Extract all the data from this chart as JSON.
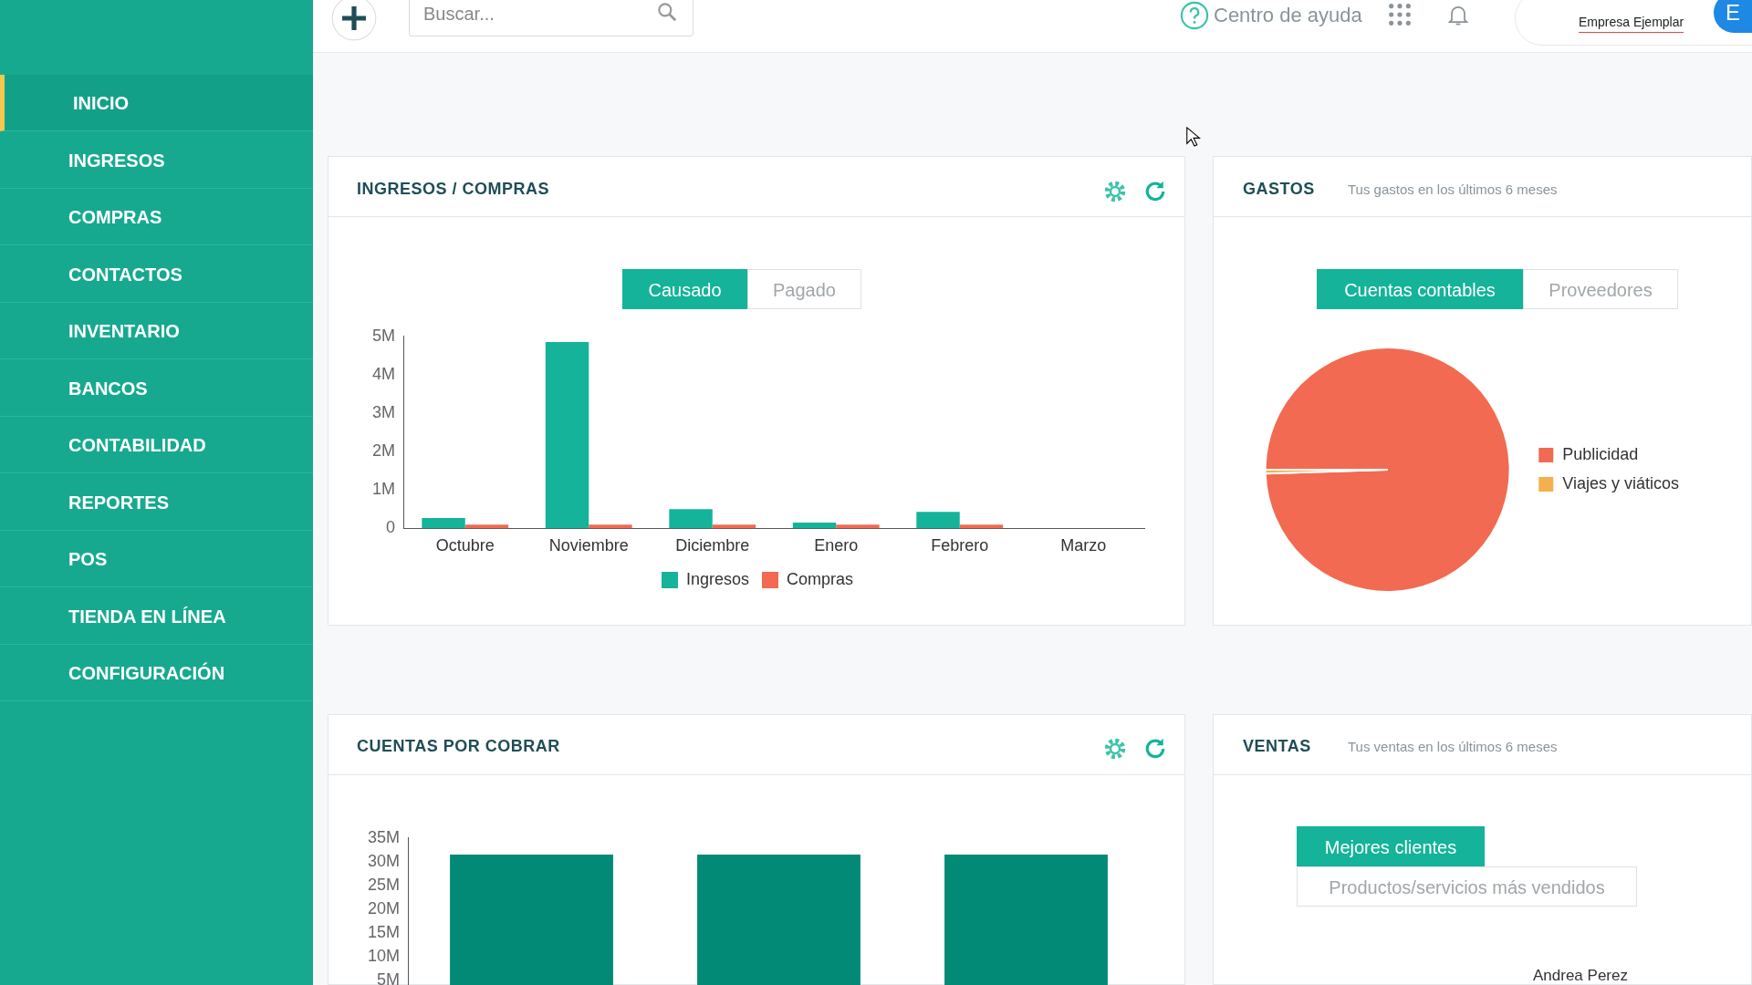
{
  "chart_data": [
    {
      "type": "other",
      "annotations": [
        "INICIO",
        "INGRESOS",
        "COMPRAS",
        "CONTACTOS",
        "INVENTARIO",
        "BANCOS",
        "CONTABILIDAD",
        "REPORTES",
        "POS",
        "TIENDA EN LÍNEA",
        "CONFIGURACIÓN",
        "Buscar...",
        "Centro de ayuda",
        "Empresa Ejemplar",
        "E"
      ]
    },
    {
      "type": "bar",
      "title": "INGRESOS / COMPRAS",
      "annotations": [
        "Causado",
        "Pagado"
      ],
      "categories": [
        "Octubre",
        "Noviembre",
        "Diciembre",
        "Enero",
        "Febrero",
        "Marzo"
      ],
      "series": [
        {
          "name": "Ingresos",
          "color": "#14b39a",
          "values": [
            270000,
            4850000,
            500000,
            150000,
            430000,
            0
          ]
        },
        {
          "name": "Compras",
          "color": "#f26a51",
          "values": [
            100000,
            100000,
            100000,
            100000,
            100000,
            0
          ]
        }
      ],
      "ylim": [
        0,
        5000000
      ],
      "yticks": [
        0,
        {
          "value": 1000000,
          "label": "1M"
        },
        {
          "value": 2000000,
          "label": "2M"
        },
        {
          "value": 3000000,
          "label": "3M"
        },
        {
          "value": 4000000,
          "label": "4M"
        },
        {
          "value": 5000000,
          "label": "5M"
        }
      ],
      "legend": "bottom"
    },
    {
      "type": "pie",
      "title": "GASTOS",
      "subtitle": "Tus gastos en los últimos 6 meses",
      "annotations": [
        "Cuentas contables",
        "Proveedores"
      ],
      "categories": [
        "Publicidad",
        "Viajes y viáticos"
      ],
      "values": [
        99.5,
        0.5
      ],
      "colors": [
        "#f26a51",
        "#f4b04f"
      ],
      "legend": "right"
    },
    {
      "type": "bar",
      "title": "CUENTAS POR COBRAR",
      "categories": [
        null,
        null,
        null
      ],
      "values": [
        31500000,
        31500000,
        31500000
      ],
      "color": "#038a77",
      "ylim": [
        0,
        35000000
      ],
      "yticks": [
        {
          "value": 5000000,
          "label": "5M"
        },
        {
          "value": 10000000,
          "label": "10M"
        },
        {
          "value": 15000000,
          "label": "15M"
        },
        {
          "value": 20000000,
          "label": "20M"
        },
        {
          "value": 25000000,
          "label": "25M"
        },
        {
          "value": 30000000,
          "label": "30M"
        },
        {
          "value": 35000000,
          "label": "35M"
        }
      ]
    },
    {
      "type": "other",
      "title": "VENTAS",
      "subtitle": "Tus ventas en los últimos 6 meses",
      "annotations": [
        "Mejores clientes",
        "Productos/servicios más vendidos",
        "Andrea Perez"
      ]
    }
  ]
}
